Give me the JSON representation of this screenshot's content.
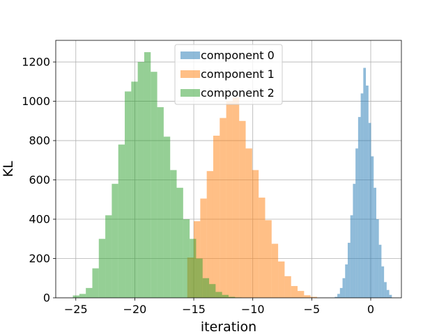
{
  "chart_data": {
    "type": "histogram",
    "title": "",
    "xlabel": "iteration",
    "ylabel": "KL",
    "xlim": [
      -26.7,
      2.6
    ],
    "ylim": [
      0,
      1310
    ],
    "xticks": [
      -25,
      -20,
      -15,
      -10,
      -5,
      0
    ],
    "xtick_labels": [
      "−25",
      "−20",
      "−15",
      "−10",
      "−5",
      "0"
    ],
    "yticks": [
      0,
      200,
      400,
      600,
      800,
      1000,
      1200
    ],
    "ytick_labels": [
      "0",
      "200",
      "400",
      "600",
      "800",
      "1000",
      "1200"
    ],
    "grid": true,
    "legend_position": "top-center",
    "opacity": 0.5,
    "series": [
      {
        "name": "component 0",
        "color": "#1f77b4",
        "bin_start": -3.05,
        "bin_width": 0.22,
        "counts": [
          5,
          20,
          50,
          100,
          170,
          280,
          420,
          580,
          760,
          920,
          1040,
          1170,
          1080,
          890,
          720,
          560,
          400,
          270,
          160,
          80,
          40,
          15
        ]
      },
      {
        "name": "component 1",
        "color": "#ff7f0e",
        "bin_start": -15.55,
        "bin_width": 0.55,
        "counts": [
          205,
          390,
          505,
          645,
          825,
          915,
          1000,
          1020,
          900,
          760,
          650,
          510,
          395,
          275,
          185,
          110,
          60,
          35,
          13,
          5
        ]
      },
      {
        "name": "component 2",
        "color": "#2ca02c",
        "bin_start": -25.25,
        "bin_width": 0.55,
        "counts": [
          12,
          20,
          50,
          150,
          300,
          420,
          580,
          780,
          1050,
          1100,
          1200,
          1250,
          1150,
          970,
          820,
          650,
          560,
          400,
          300,
          200,
          100,
          70,
          30,
          15,
          5,
          2
        ]
      }
    ]
  }
}
